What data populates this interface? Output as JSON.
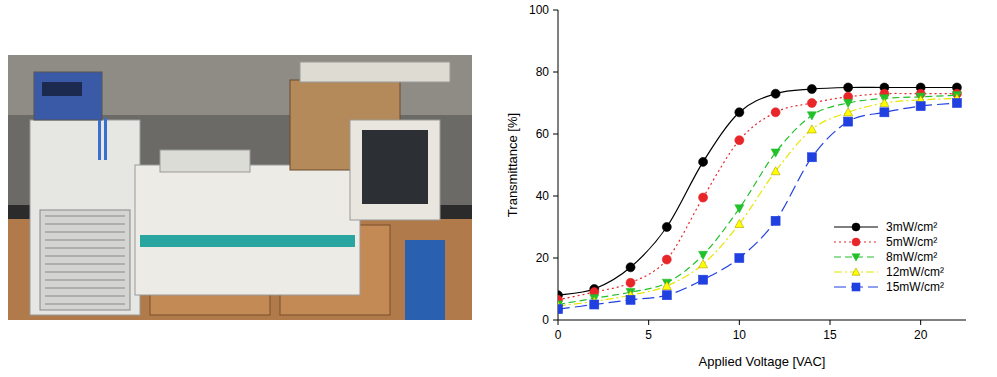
{
  "chart_data": {
    "type": "line",
    "x_label": "Applied Voltage [VAC]",
    "y_label": "Transmittance [%]",
    "x": [
      0,
      2,
      4,
      6,
      8,
      10,
      12,
      14,
      16,
      18,
      20,
      22
    ],
    "xlim": [
      0,
      22.5
    ],
    "xticks": [
      0,
      5,
      10,
      15,
      20
    ],
    "ylim": [
      0,
      100
    ],
    "yticks": [
      0,
      20,
      40,
      60,
      80,
      100
    ],
    "grid": false,
    "legend": "lower-right",
    "series": [
      {
        "name": "3mW/cm²",
        "color": "#000000",
        "marker": "circle",
        "line_style": "solid",
        "values": [
          8,
          10,
          17,
          30,
          51,
          67,
          73,
          74.5,
          75,
          75,
          75,
          75
        ]
      },
      {
        "name": "5mW/cm²",
        "color": "#e8262a",
        "marker": "circle",
        "line_style": "dotted",
        "values": [
          6.5,
          9,
          12,
          19.5,
          39.5,
          58,
          67,
          70,
          72,
          73,
          73,
          73
        ]
      },
      {
        "name": "8mW/cm²",
        "color": "#22c02a",
        "marker": "triangle-down",
        "line_style": "dashed",
        "values": [
          5,
          7,
          9,
          12,
          21,
          36,
          54,
          66,
          70,
          71.5,
          72,
          72.5
        ]
      },
      {
        "name": "12mW/cm²",
        "color": "#ffff00",
        "marker": "triangle-up",
        "line_style": "dash-dot",
        "values": [
          4.5,
          6,
          8,
          11,
          18,
          31,
          48,
          61.5,
          67,
          70,
          71,
          71.5
        ]
      },
      {
        "name": "15mW/cm²",
        "color": "#2040e0",
        "marker": "square",
        "line_style": "long-dash",
        "values": [
          3.5,
          5,
          6.5,
          8,
          13,
          20,
          32,
          52.5,
          64,
          67,
          69,
          70
        ]
      }
    ]
  }
}
